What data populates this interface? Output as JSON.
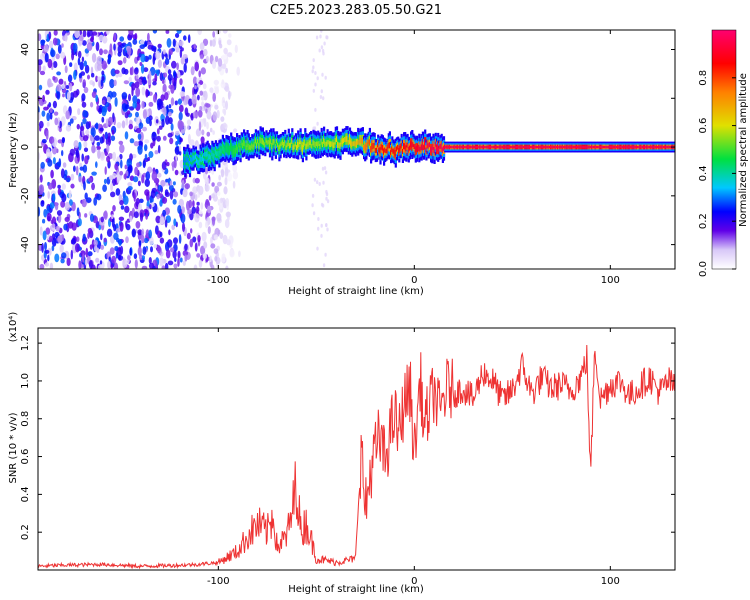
{
  "title": "C2E5.2023.283.05.50.G21",
  "chart_data": [
    {
      "type": "heatmap",
      "title": "C2E5.2023.283.05.50.G21",
      "xlabel": "Height of straight line (km)",
      "ylabel": "Frequency (Hz)",
      "xlim": [
        -192,
        133
      ],
      "ylim": [
        -50,
        48
      ],
      "xticks": [
        -100,
        0,
        100
      ],
      "xtick_labels": [
        "-100",
        "0",
        "100"
      ],
      "yticks": [
        -40,
        -20,
        0,
        20,
        40
      ],
      "ytick_labels": [
        "-40",
        "-20",
        "0",
        "20",
        "40"
      ],
      "grid": false,
      "colorbar": {
        "label": "Normalized spectral amplitude",
        "range": [
          0,
          1
        ],
        "ticks": [
          0.0,
          0.2,
          0.4,
          0.6,
          0.8
        ],
        "tick_labels": [
          "0.0",
          "0.2",
          "0.4",
          "0.6",
          "0.8"
        ],
        "colors": [
          "#ffffff",
          "#d8c8f8",
          "#6000e8",
          "#0000ff",
          "#00c8ff",
          "#00e040",
          "#e0e000",
          "#ff8000",
          "#ff0000",
          "#ff0070"
        ]
      },
      "signal_track": {
        "x": [
          -118,
          -110,
          -100,
          -90,
          -80,
          -70,
          -60,
          -50,
          -40,
          -30,
          -20,
          -10,
          0,
          10,
          20,
          40,
          60,
          80,
          90,
          100,
          120,
          133
        ],
        "frequency": [
          -6,
          -5,
          -2,
          0,
          2,
          1,
          1,
          1,
          2,
          2,
          0,
          -1,
          0,
          0,
          0,
          0,
          0,
          0,
          0,
          0,
          0,
          0
        ],
        "amplitude": [
          0.3,
          0.35,
          0.4,
          0.5,
          0.55,
          0.55,
          0.6,
          0.55,
          0.6,
          0.65,
          0.85,
          0.85,
          0.9,
          0.95,
          0.95,
          0.95,
          0.95,
          0.95,
          0.95,
          0.95,
          0.95,
          0.95
        ]
      },
      "noise_region": {
        "x_range": [
          -192,
          -95
        ],
        "amplitude": [
          0.05,
          0.3
        ]
      }
    },
    {
      "type": "line",
      "title": "",
      "xlabel": "Height of straight line (km)",
      "ylabel": "SNR (10 * v/v)",
      "y_multiplier": "(x10⁴)",
      "xlim": [
        -192,
        133
      ],
      "ylim": [
        0,
        1.28
      ],
      "xticks": [
        -100,
        0,
        100
      ],
      "xtick_labels": [
        "-100",
        "0",
        "100"
      ],
      "yticks": [
        0.2,
        0.4,
        0.6,
        0.8,
        1.0,
        1.2
      ],
      "ytick_labels": [
        "0.2",
        "0.4",
        "0.6",
        "0.8",
        "1.0",
        "1.2"
      ],
      "grid": false,
      "color": "#ee3333",
      "series": [
        {
          "name": "",
          "x": [
            -192,
            -180,
            -160,
            -140,
            -120,
            -110,
            -100,
            -95,
            -90,
            -85,
            -80,
            -75,
            -72,
            -70,
            -65,
            -62,
            -60,
            -58,
            -55,
            -50,
            -45,
            -40,
            -35,
            -30,
            -27,
            -25,
            -22,
            -20,
            -18,
            -15,
            -12,
            -10,
            -8,
            -5,
            -2,
            0,
            3,
            5,
            8,
            10,
            13,
            15,
            18,
            20,
            25,
            30,
            35,
            40,
            45,
            50,
            55,
            60,
            65,
            70,
            75,
            80,
            85,
            88,
            90,
            92,
            95,
            100,
            105,
            110,
            115,
            120,
            125,
            130,
            133
          ],
          "y": [
            0.02,
            0.025,
            0.03,
            0.02,
            0.025,
            0.03,
            0.04,
            0.07,
            0.1,
            0.18,
            0.24,
            0.2,
            0.3,
            0.12,
            0.18,
            0.32,
            0.49,
            0.2,
            0.25,
            0.06,
            0.05,
            0.04,
            0.05,
            0.06,
            0.65,
            0.3,
            0.55,
            0.62,
            0.7,
            0.58,
            0.74,
            0.82,
            0.7,
            0.9,
            0.95,
            0.6,
            1.02,
            0.75,
            0.86,
            0.95,
            0.82,
            0.92,
            0.98,
            0.93,
            0.96,
            0.9,
            1.05,
            1.0,
            0.9,
            0.95,
            1.08,
            0.93,
            1.02,
            0.96,
            0.98,
            0.95,
            1.02,
            1.12,
            0.48,
            1.2,
            0.9,
            0.98,
            1.0,
            0.92,
            0.97,
            1.02,
            0.94,
            1.0,
            0.96
          ]
        }
      ]
    }
  ]
}
